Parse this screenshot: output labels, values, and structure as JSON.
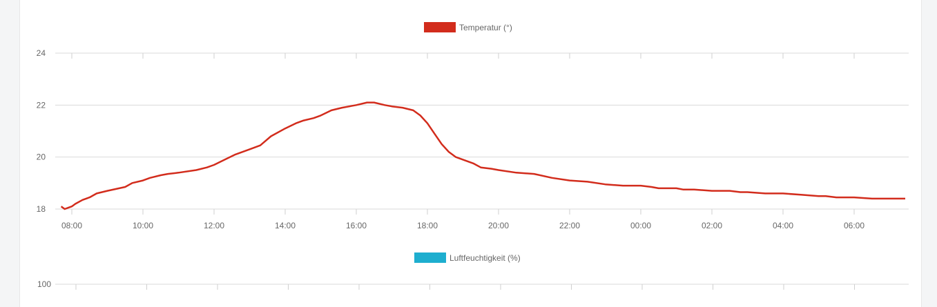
{
  "chart_data": [
    {
      "type": "line",
      "legend": "Temperatur (°)",
      "color": "#d22c1c",
      "ylim": [
        18,
        24
      ],
      "yticks": [
        18,
        20,
        22,
        24
      ],
      "xticks": [
        "08:00",
        "10:00",
        "12:00",
        "14:00",
        "16:00",
        "18:00",
        "20:00",
        "22:00",
        "00:00",
        "02:00",
        "04:00",
        "06:00"
      ],
      "x_start_hours": 7.7,
      "x_end_hours": 31.5,
      "series": [
        {
          "x": [
            7.7,
            7.8,
            7.9,
            8.0,
            8.1,
            8.3,
            8.5,
            8.7,
            9.0,
            9.5,
            9.7,
            10.0,
            10.2,
            10.5,
            10.7,
            11.0,
            11.5,
            11.8,
            12.0,
            12.3,
            12.6,
            13.0,
            13.3,
            13.6,
            14.0,
            14.3,
            14.5,
            14.8,
            15.0,
            15.3,
            15.6,
            16.0,
            16.3,
            16.5,
            16.8,
            17.0,
            17.3,
            17.6,
            17.8,
            18.0,
            18.2,
            18.4,
            18.6,
            18.8,
            19.0,
            19.3,
            19.5,
            19.8,
            20.0,
            20.5,
            21.0,
            21.5,
            22.0,
            22.5,
            23.0,
            23.5,
            24.0,
            24.3,
            24.5,
            25.0,
            25.2,
            25.5,
            26.0,
            26.5,
            26.8,
            27.0,
            27.5,
            28.0,
            28.5,
            29.0,
            29.2,
            29.5,
            30.0,
            30.5,
            31.0,
            31.5
          ],
          "values": [
            18.1,
            18.0,
            18.05,
            18.1,
            18.2,
            18.35,
            18.45,
            18.6,
            18.7,
            18.85,
            19.0,
            19.1,
            19.2,
            19.3,
            19.35,
            19.4,
            19.5,
            19.6,
            19.7,
            19.9,
            20.1,
            20.3,
            20.45,
            20.8,
            21.1,
            21.3,
            21.4,
            21.5,
            21.6,
            21.8,
            21.9,
            22.0,
            22.1,
            22.1,
            22.0,
            21.95,
            21.9,
            21.8,
            21.6,
            21.3,
            20.9,
            20.5,
            20.2,
            20.0,
            19.9,
            19.75,
            19.6,
            19.55,
            19.5,
            19.4,
            19.35,
            19.2,
            19.1,
            19.05,
            18.95,
            18.9,
            18.9,
            18.85,
            18.8,
            18.8,
            18.75,
            18.75,
            18.7,
            18.7,
            18.65,
            18.65,
            18.6,
            18.6,
            18.55,
            18.5,
            18.5,
            18.45,
            18.45,
            18.4,
            18.4,
            18.4
          ]
        }
      ]
    },
    {
      "type": "line",
      "legend": "Luftfeuchtigkeit (%)",
      "color": "#1eaecf",
      "yticks": [
        100
      ]
    }
  ]
}
